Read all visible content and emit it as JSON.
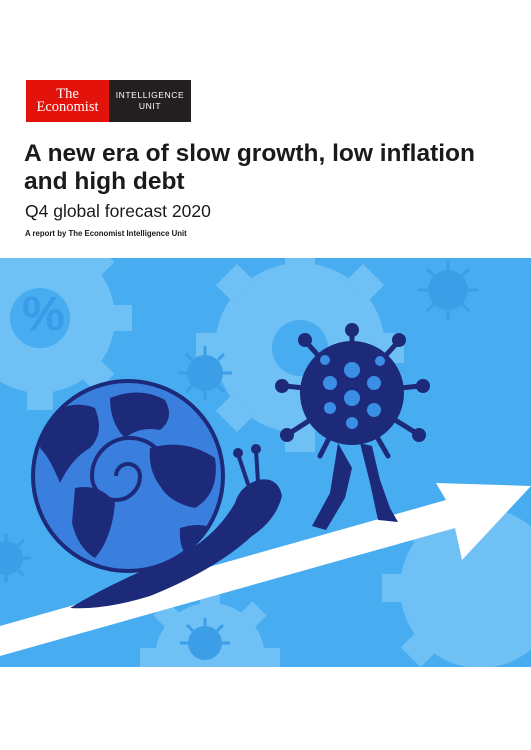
{
  "brand": {
    "red_line1": "The",
    "red_line2": "Economist",
    "unit_line1": "INTELLIGENCE",
    "unit_line2": "UNIT",
    "colors": {
      "red": "#e3120b",
      "dark": "#231f20"
    }
  },
  "cover": {
    "title": "A new era of slow growth, low inflation and high debt",
    "subtitle": "Q4 global forecast 2020",
    "byline": "A report by The Economist Intelligence Unit"
  },
  "illustration": {
    "icons": [
      "gear-icon",
      "percent-icon",
      "virus-icon",
      "globe-icon",
      "snail-icon",
      "arrow-icon"
    ],
    "percent_symbol": "%",
    "colors": {
      "sky": "#48acf0",
      "gear": "#6ec0f5",
      "navy": "#1d2a7a",
      "globe_blue": "#3a7fdd",
      "arrow": "#ffffff"
    }
  }
}
